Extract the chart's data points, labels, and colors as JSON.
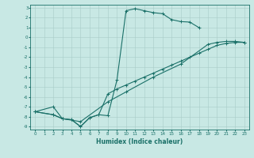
{
  "xlabel": "Humidex (Indice chaleur)",
  "bg_color": "#c8e8e4",
  "grid_color": "#a8ccc8",
  "line_color": "#1a7068",
  "xlim": [
    0,
    23
  ],
  "ylim": [
    -9,
    3
  ],
  "line1_x": [
    0,
    2,
    3,
    4,
    5,
    6,
    7,
    8,
    9,
    10,
    11,
    12,
    13,
    14,
    15,
    16,
    17,
    18
  ],
  "line1_y": [
    -7.5,
    -7.0,
    -8.2,
    -8.3,
    -9.0,
    -8.1,
    -7.8,
    -7.9,
    -4.3,
    2.7,
    2.9,
    2.7,
    2.5,
    2.4,
    1.8,
    1.6,
    1.55,
    1.0
  ],
  "line2_x": [
    0,
    2,
    3,
    4,
    5,
    6,
    7,
    8,
    9,
    10,
    11,
    12,
    13,
    14,
    15,
    16,
    17,
    18,
    19,
    20,
    21,
    22,
    23
  ],
  "line2_y": [
    -7.5,
    -7.8,
    -8.2,
    -8.3,
    -9.0,
    -8.1,
    -7.8,
    -5.7,
    -5.2,
    -4.8,
    -4.4,
    -4.0,
    -3.6,
    -3.2,
    -2.8,
    -2.4,
    -2.0,
    -1.6,
    -1.2,
    -0.8,
    -0.6,
    -0.5,
    -0.5
  ],
  "line3_x": [
    0,
    2,
    3,
    5,
    8,
    10,
    13,
    16,
    19,
    20,
    21,
    22,
    23
  ],
  "line3_y": [
    -7.5,
    -7.8,
    -8.2,
    -8.5,
    -6.5,
    -5.5,
    -4.0,
    -2.7,
    -0.7,
    -0.5,
    -0.4,
    -0.4,
    -0.5
  ]
}
